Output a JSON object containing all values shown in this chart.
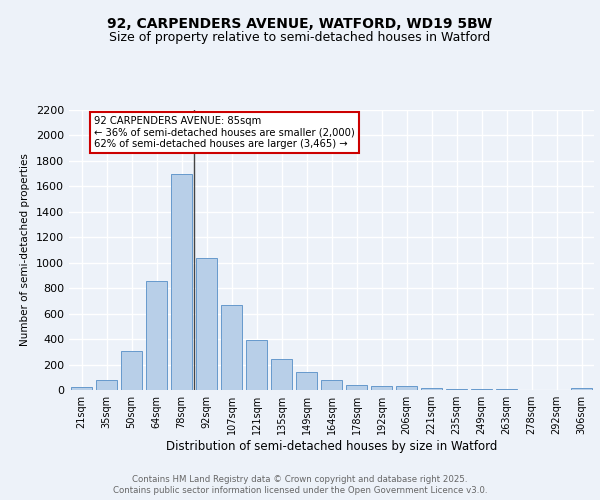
{
  "title1": "92, CARPENDERS AVENUE, WATFORD, WD19 5BW",
  "title2": "Size of property relative to semi-detached houses in Watford",
  "xlabel": "Distribution of semi-detached houses by size in Watford",
  "ylabel": "Number of semi-detached properties",
  "categories": [
    "21sqm",
    "35sqm",
    "50sqm",
    "64sqm",
    "78sqm",
    "92sqm",
    "107sqm",
    "121sqm",
    "135sqm",
    "149sqm",
    "164sqm",
    "178sqm",
    "192sqm",
    "206sqm",
    "221sqm",
    "235sqm",
    "249sqm",
    "263sqm",
    "278sqm",
    "292sqm",
    "306sqm"
  ],
  "values": [
    20,
    75,
    310,
    860,
    1700,
    1040,
    670,
    395,
    245,
    140,
    80,
    38,
    30,
    28,
    15,
    10,
    5,
    5,
    2,
    2,
    15
  ],
  "bar_color": "#b8cfe8",
  "bar_edge_color": "#6699cc",
  "annotation_title": "92 CARPENDERS AVENUE: 85sqm",
  "annotation_line2": "← 36% of semi-detached houses are smaller (2,000)",
  "annotation_line3": "62% of semi-detached houses are larger (3,465) →",
  "highlight_bin_index": 4,
  "vline_position": 4.5,
  "ylim": [
    0,
    2200
  ],
  "yticks": [
    0,
    200,
    400,
    600,
    800,
    1000,
    1200,
    1400,
    1600,
    1800,
    2000,
    2200
  ],
  "footer1": "Contains HM Land Registry data © Crown copyright and database right 2025.",
  "footer2": "Contains public sector information licensed under the Open Government Licence v3.0.",
  "bg_color": "#edf2f9",
  "plot_bg_color": "#edf2f9",
  "title_fontsize": 10,
  "subtitle_fontsize": 9,
  "annotation_box_color": "#ffffff",
  "annotation_box_edge": "#cc0000"
}
